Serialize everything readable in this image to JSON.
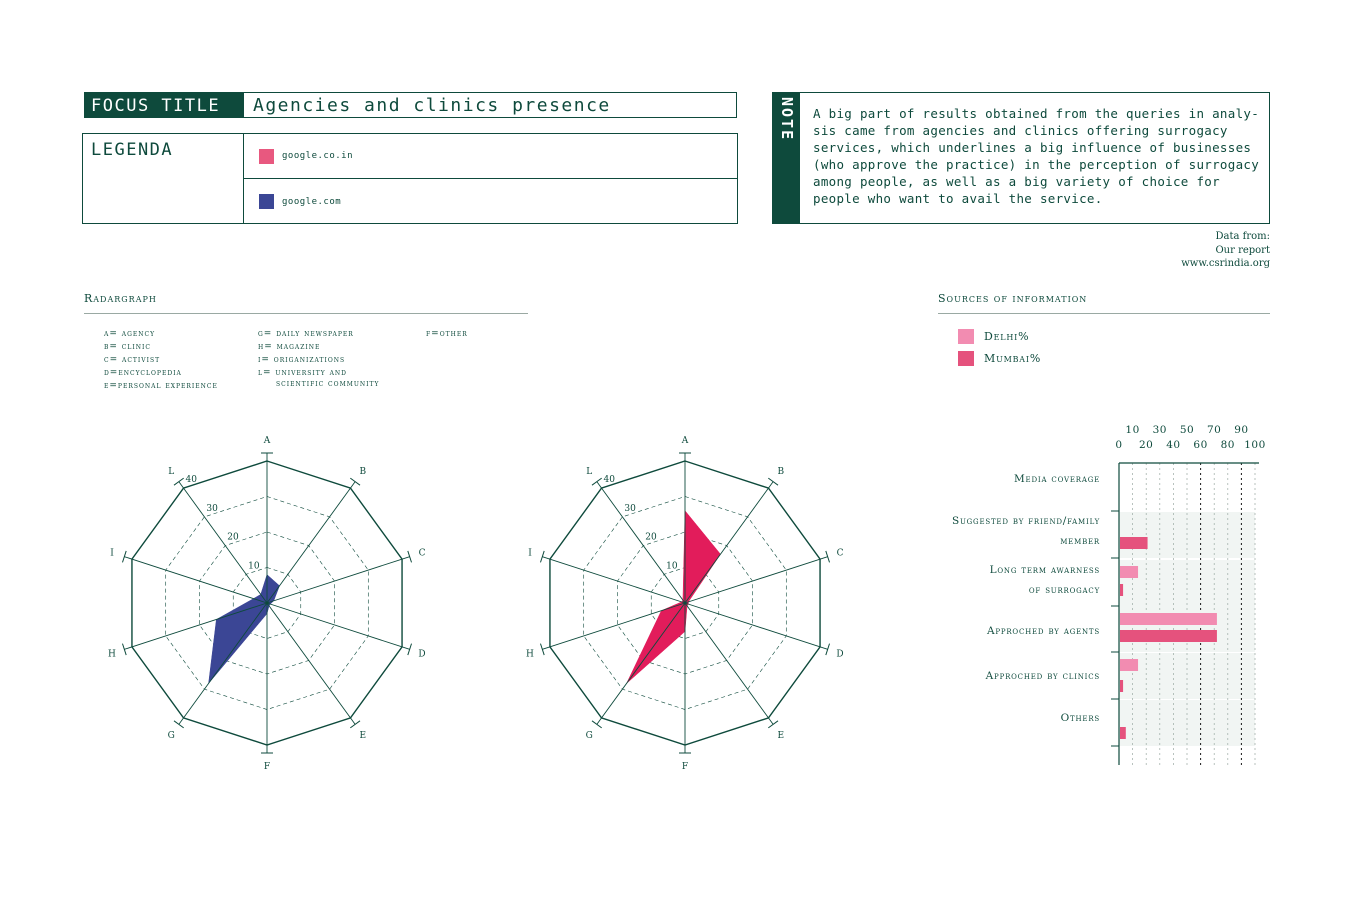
{
  "header": {
    "focus_tag": "FOCUS TITLE",
    "focus_title": "Agencies and clinics presence"
  },
  "legenda": {
    "title": "LEGENDA",
    "items": [
      {
        "label": "google.co.in",
        "color": "#e8587f"
      },
      {
        "label": "google.com",
        "color": "#3b4695"
      }
    ]
  },
  "note": {
    "tag": "NOTE",
    "lines": [
      "A big part of results obtained from the queries in analy-",
      "sis came from agencies and clinics offering surrogacy",
      "services, which underlines a big influence of businesses",
      "(who approve the practice) in the perception of surrogacy",
      "among people, as well as a big variety of choice for",
      "people who want to avail the service."
    ]
  },
  "data_from": [
    "Data from:",
    "Our report",
    "www.csrindia.org"
  ],
  "radar_section": {
    "title": "Radargraph",
    "codes_col1": [
      "A= agency",
      "B= clinic",
      "C= activist",
      "D=encyclopedia",
      "E=personal experience"
    ],
    "codes_col2": [
      "G= daily newspaper",
      "H= magazine",
      "I= origanizations",
      "L= university and",
      "scientific community"
    ],
    "codes_col3": [
      "F=other"
    ]
  },
  "sources_section": {
    "title": "Sources of information",
    "legend": [
      {
        "label": "Delhi%",
        "color": "#f28cb1"
      },
      {
        "label": "Mumbai%",
        "color": "#e5527d"
      }
    ]
  },
  "chart_data": [
    {
      "type": "radar",
      "axes": [
        "A",
        "B",
        "C",
        "D",
        "E",
        "F",
        "G",
        "H",
        "I",
        "L"
      ],
      "ring_labels": [
        "10",
        "20",
        "30",
        "40"
      ],
      "rings": [
        10,
        20,
        30,
        40
      ],
      "max": 40,
      "series": [
        {
          "name": "google.com",
          "color": "#3b4695",
          "values": [
            8,
            6,
            2,
            1,
            1,
            3,
            28,
            15,
            4,
            3
          ]
        }
      ]
    },
    {
      "type": "radar",
      "axes": [
        "A",
        "B",
        "C",
        "D",
        "E",
        "F",
        "G",
        "H",
        "I",
        "L"
      ],
      "ring_labels": [
        "10",
        "20",
        "30",
        "40"
      ],
      "rings": [
        10,
        20,
        30,
        40
      ],
      "max": 40,
      "series": [
        {
          "name": "google.co.in",
          "color": "#e21c5b",
          "values": [
            26,
            17,
            1,
            1,
            1,
            8,
            28,
            7,
            1,
            1
          ]
        }
      ]
    },
    {
      "type": "bar",
      "orientation": "horizontal",
      "x_ticks_top": [
        "10",
        "30",
        "50",
        "70",
        "90"
      ],
      "x_ticks_bottom": [
        "0",
        "20",
        "40",
        "60",
        "80",
        "100"
      ],
      "xlim": [
        0,
        100
      ],
      "categories": [
        [
          "Media coverage"
        ],
        [
          "Suggested by friend/family",
          "member"
        ],
        [
          "Long term awarness",
          "of surrogacy"
        ],
        [
          "Approched by agents"
        ],
        [
          "Approched by clinics"
        ],
        [
          "Others"
        ]
      ],
      "series": [
        {
          "name": "Delhi%",
          "color": "#f28cb1",
          "values": [
            0,
            0,
            14,
            72,
            14,
            0
          ]
        },
        {
          "name": "Mumbai%",
          "color": "#e5527d",
          "values": [
            0,
            21,
            3,
            72,
            3,
            5
          ]
        }
      ]
    }
  ]
}
